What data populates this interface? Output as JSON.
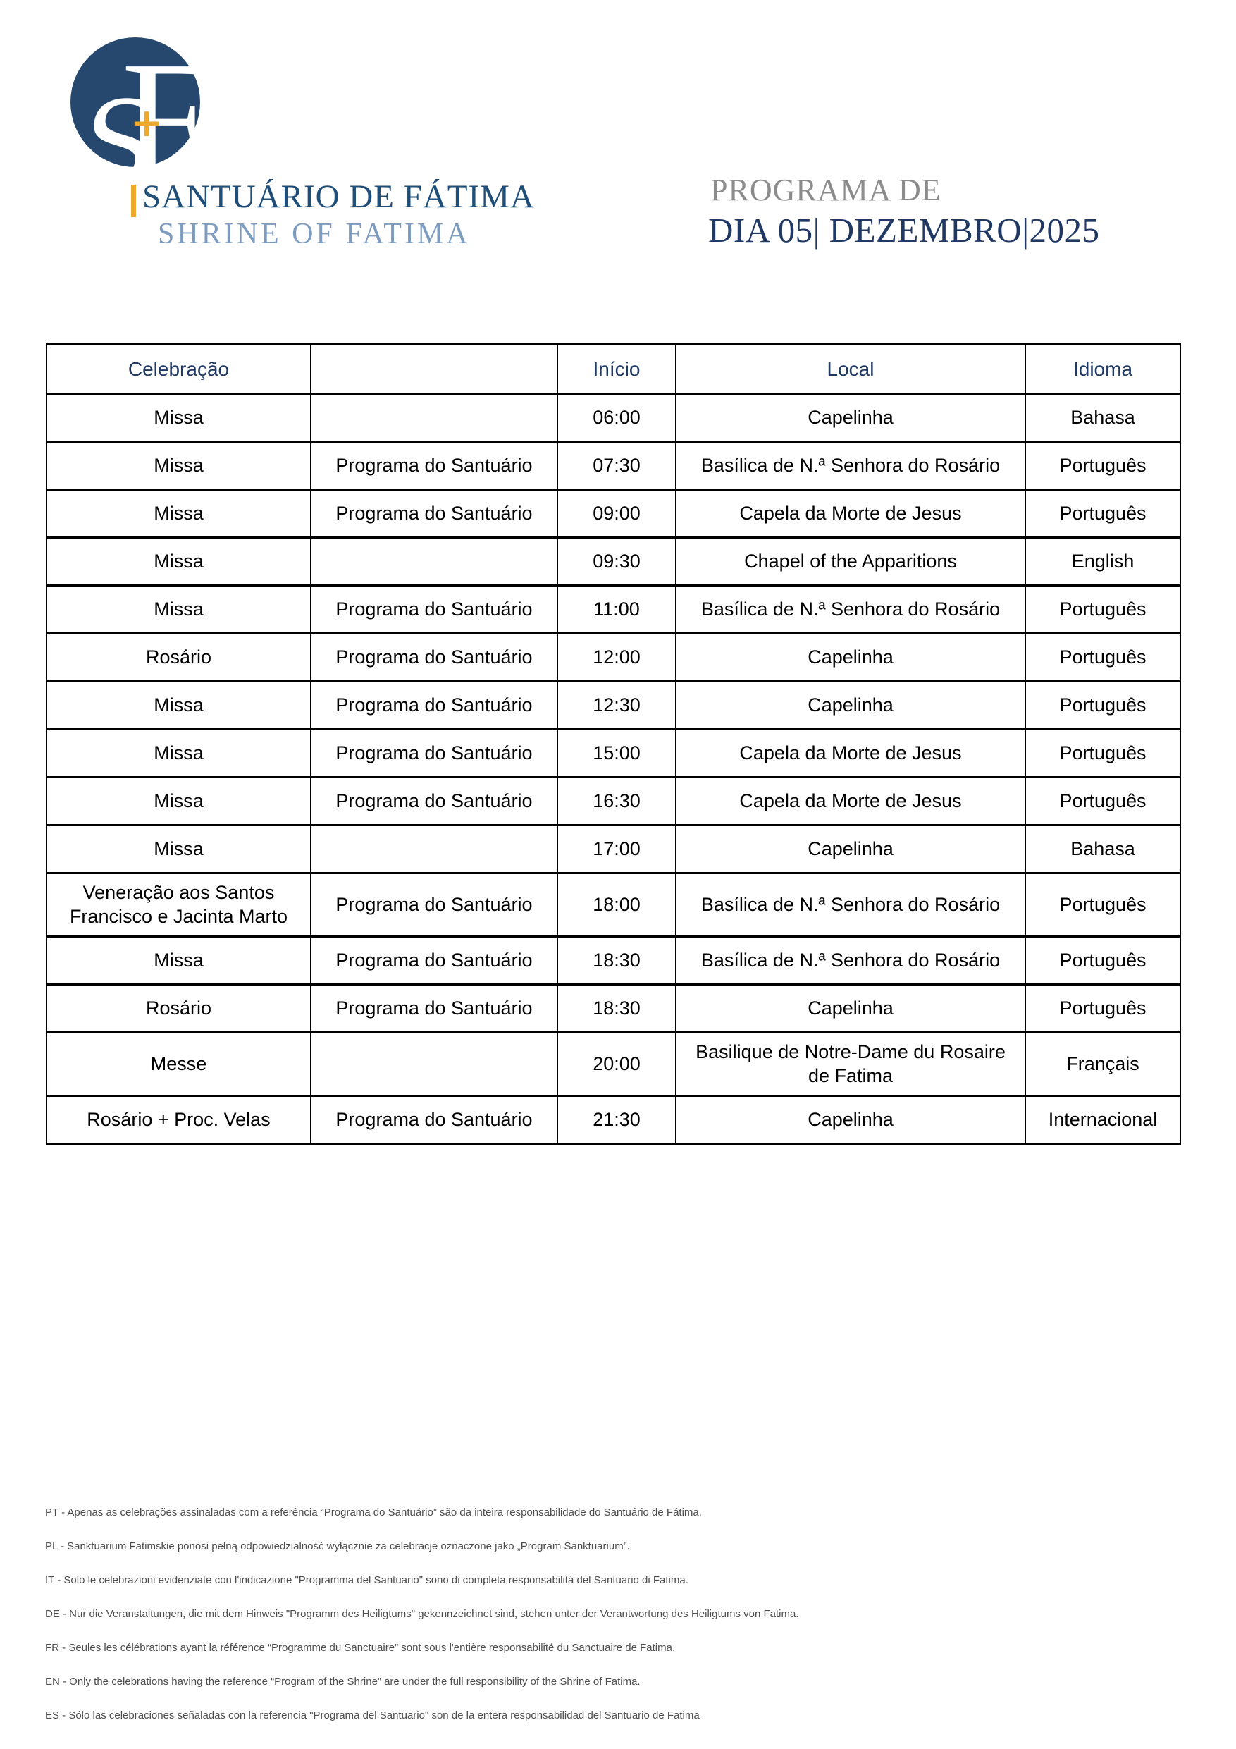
{
  "logo": {
    "monogram_s": "S",
    "monogram_f": "F",
    "cross": "+",
    "title_pt": "SANTUÁRIO DE FÁTIMA",
    "title_en": "SHRINE OF FATIMA"
  },
  "header": {
    "program_label": "PROGRAMA DE",
    "program_date": "DIA 05| DEZEMBRO|2025"
  },
  "colors": {
    "logo_navy": "#26486F",
    "logo_gold": "#EEA82E",
    "title_blue": "#1F4E79",
    "subtitle_blue": "#7E9CC0",
    "label_gray": "#8C8C8C",
    "date_navy": "#1F3864",
    "table_border": "#000000",
    "footnote_gray": "#4D4D4D"
  },
  "table": {
    "headers": [
      "Celebração",
      "",
      "Início",
      "Local",
      "Idioma"
    ],
    "rows": [
      [
        "Missa",
        "",
        "06:00",
        "Capelinha",
        "Bahasa"
      ],
      [
        "Missa",
        "Programa do Santuário",
        "07:30",
        "Basílica de N.ª Senhora do Rosário",
        "Português"
      ],
      [
        "Missa",
        "Programa do Santuário",
        "09:00",
        "Capela da Morte de Jesus",
        "Português"
      ],
      [
        "Missa",
        "",
        "09:30",
        "Chapel of the Apparitions",
        "English"
      ],
      [
        "Missa",
        "Programa do Santuário",
        "11:00",
        "Basílica de N.ª Senhora do Rosário",
        "Português"
      ],
      [
        "Rosário",
        "Programa do Santuário",
        "12:00",
        "Capelinha",
        "Português"
      ],
      [
        "Missa",
        "Programa do Santuário",
        "12:30",
        "Capelinha",
        "Português"
      ],
      [
        "Missa",
        "Programa do Santuário",
        "15:00",
        "Capela da Morte de Jesus",
        "Português"
      ],
      [
        "Missa",
        "Programa do Santuário",
        "16:30",
        "Capela da Morte de Jesus",
        "Português"
      ],
      [
        "Missa",
        "",
        "17:00",
        "Capelinha",
        "Bahasa"
      ],
      [
        "Veneração aos Santos Francisco e Jacinta Marto",
        "Programa do Santuário",
        "18:00",
        "Basílica de N.ª Senhora do Rosário",
        "Português"
      ],
      [
        "Missa",
        "Programa do Santuário",
        "18:30",
        "Basílica de N.ª Senhora do Rosário",
        "Português"
      ],
      [
        "Rosário",
        "Programa do Santuário",
        "18:30",
        "Capelinha",
        "Português"
      ],
      [
        "Messe",
        "",
        "20:00",
        "Basilique de Notre-Dame du Rosaire de Fatima",
        "Français"
      ],
      [
        "Rosário + Proc. Velas",
        "Programa do Santuário",
        "21:30",
        "Capelinha",
        "Internacional"
      ]
    ]
  },
  "footnotes": [
    "PT - Apenas as celebrações assinaladas com a referência “Programa do Santuário” são da inteira responsabilidade do Santuário de Fátima.",
    "PL - Sanktuarium Fatimskie ponosi pełną odpowiedzialność wyłącznie za celebracje oznaczone jako „Program Sanktuarium”.",
    "IT - Solo le celebrazioni evidenziate con l'indicazione \"Programma del Santuario\" sono di completa responsabilità del Santuario di Fatima.",
    "DE - Nur die Veranstaltungen, die mit dem Hinweis \"Programm des Heiligtums\" gekennzeichnet sind, stehen unter der Verantwortung des Heiligtums von Fatima.",
    "FR - Seules les célébrations ayant la référence “Programme du Sanctuaire” sont sous l'entière responsabilité du Sanctuaire de Fatima.",
    "EN - Only the celebrations having the reference “Program of the Shrine” are under the full responsibility of the Shrine of Fatima.",
    "ES - Sólo las celebraciones señaladas con la referencia \"Programa del Santuario\" son de la entera responsabilidad del Santuario de Fatima"
  ]
}
